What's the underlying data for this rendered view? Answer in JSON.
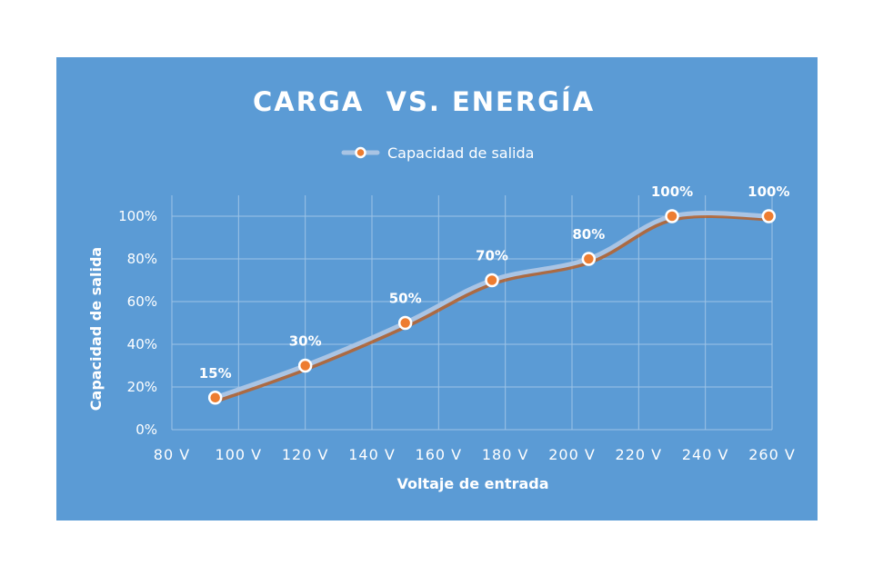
{
  "chart_data": {
    "type": "line",
    "title": "CARGA  VS. ENERGÍA",
    "xlabel": "Voltaje de entrada",
    "ylabel": "Capacidad de salida",
    "xlim": [
      80,
      260
    ],
    "ylim": [
      0,
      100
    ],
    "x_ticks": [
      "80 V",
      "100 V",
      "120 V",
      "140 V",
      "160 V",
      "180 V",
      "200 V",
      "220 V",
      "240 V",
      "260 V"
    ],
    "x_tick_values": [
      80,
      100,
      120,
      140,
      160,
      180,
      200,
      220,
      240,
      260
    ],
    "y_ticks": [
      "0%",
      "20%",
      "40%",
      "60%",
      "80%",
      "100%"
    ],
    "y_tick_values": [
      0,
      20,
      40,
      60,
      80,
      100
    ],
    "grid": true,
    "legend": "top",
    "series": [
      {
        "name": "Capacidad de salida",
        "x": [
          93,
          120,
          150,
          176,
          205,
          230,
          259
        ],
        "y": [
          15,
          30,
          50,
          70,
          80,
          100,
          100
        ],
        "labels": [
          "15%",
          "30%",
          "50%",
          "70%",
          "80%",
          "100%",
          "100%"
        ]
      }
    ],
    "colors": {
      "background": "#5b9bd5",
      "line": "#a9c4e4",
      "line_shadow": "#c55a11",
      "marker": "#ed7d31",
      "marker_edge": "#ffffff"
    }
  }
}
